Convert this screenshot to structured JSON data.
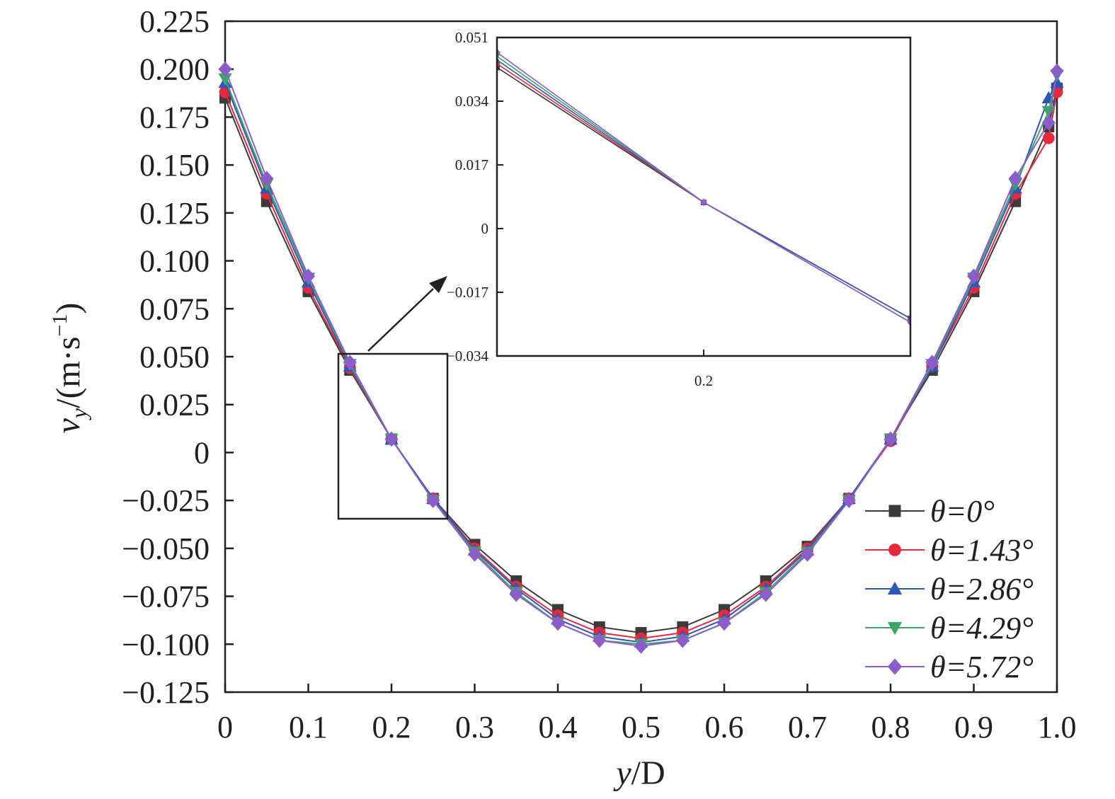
{
  "chart_data": {
    "type": "line",
    "xlabel": {
      "var": "y",
      "rest": "/D"
    },
    "ylabel": {
      "var": "v",
      "sub": "y",
      "rest": "/(m·s",
      "sup": "−1",
      "close": ")"
    },
    "xlim": [
      0,
      1.0
    ],
    "ylim": [
      -0.125,
      0.225
    ],
    "xticks": [
      "0",
      "0.1",
      "0.2",
      "0.3",
      "0.4",
      "0.5",
      "0.6",
      "0.7",
      "0.8",
      "0.9",
      "1.0"
    ],
    "yticks": [
      "0.225",
      "0.200",
      "0.175",
      "0.150",
      "0.125",
      "0.100",
      "0.075",
      "0.050",
      "0.025",
      "0",
      "−0.025",
      "−0.050",
      "−0.075",
      "−0.100",
      "−0.125"
    ],
    "legend_position": "bottom-right",
    "x": [
      0,
      0.05,
      0.1,
      0.15,
      0.2,
      0.25,
      0.3,
      0.35,
      0.4,
      0.45,
      0.5,
      0.55,
      0.6,
      0.65,
      0.7,
      0.75,
      0.8,
      0.85,
      0.9,
      0.95,
      0.99,
      1.0
    ],
    "series": [
      {
        "name": "θ=0°",
        "color": "#3b3b3b",
        "marker": "square",
        "values": [
          0.185,
          0.131,
          0.084,
          0.043,
          0.007,
          -0.024,
          -0.048,
          -0.067,
          -0.082,
          -0.091,
          -0.094,
          -0.091,
          -0.082,
          -0.067,
          -0.049,
          -0.024,
          0.007,
          0.043,
          0.084,
          0.131,
          0.17,
          0.19
        ]
      },
      {
        "name": "θ=1.43°",
        "color": "#e8283b",
        "marker": "circle",
        "values": [
          0.188,
          0.135,
          0.086,
          0.044,
          0.007,
          -0.024,
          -0.05,
          -0.07,
          -0.085,
          -0.094,
          -0.097,
          -0.094,
          -0.085,
          -0.07,
          -0.05,
          -0.024,
          0.006,
          0.045,
          0.086,
          0.135,
          0.164,
          0.188
        ]
      },
      {
        "name": "θ=2.86°",
        "color": "#2e55b8",
        "marker": "triangle-up",
        "values": [
          0.193,
          0.138,
          0.089,
          0.045,
          0.007,
          -0.024,
          -0.051,
          -0.071,
          -0.087,
          -0.096,
          -0.099,
          -0.096,
          -0.087,
          -0.071,
          -0.051,
          -0.024,
          0.007,
          0.045,
          0.089,
          0.138,
          0.185,
          0.193
        ]
      },
      {
        "name": "θ=4.29°",
        "color": "#3aa864",
        "marker": "triangle-down",
        "values": [
          0.195,
          0.14,
          0.091,
          0.046,
          0.007,
          -0.025,
          -0.052,
          -0.073,
          -0.089,
          -0.098,
          -0.1,
          -0.098,
          -0.089,
          -0.073,
          -0.052,
          -0.025,
          0.007,
          0.046,
          0.091,
          0.14,
          0.178,
          0.197
        ]
      },
      {
        "name": "θ=5.72°",
        "color": "#8c5cc8",
        "marker": "diamond",
        "values": [
          0.2,
          0.143,
          0.092,
          0.047,
          0.007,
          -0.025,
          -0.053,
          -0.074,
          -0.089,
          -0.098,
          -0.101,
          -0.098,
          -0.089,
          -0.074,
          -0.053,
          -0.025,
          0.007,
          0.047,
          0.092,
          0.143,
          0.172,
          0.199
        ]
      }
    ],
    "inset": {
      "xlim": [
        0.15,
        0.25
      ],
      "ylim": [
        -0.034,
        0.051
      ],
      "xticks": [
        "0.2"
      ],
      "yticks": [
        "0.051",
        "0.034",
        "0.017",
        "0",
        "−0.017",
        "−0.034"
      ],
      "x": [
        0.15,
        0.2,
        0.25
      ]
    }
  }
}
